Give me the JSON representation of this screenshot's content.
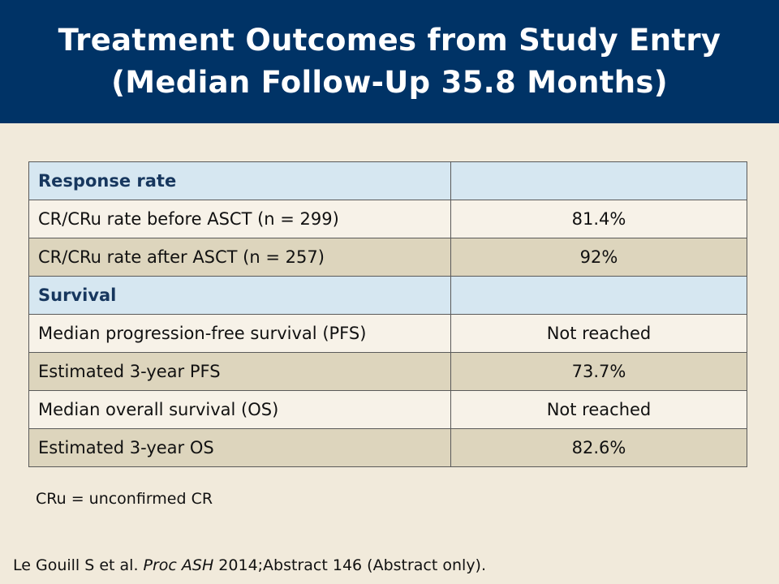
{
  "header": {
    "title_line1": "Treatment Outcomes from Study Entry",
    "title_line2": "(Median Follow-Up 35.8 Months)"
  },
  "table": {
    "rows": [
      {
        "type": "section",
        "label": "Response rate",
        "value": ""
      },
      {
        "type": "light",
        "label": "CR/CRu rate before ASCT (n = 299)",
        "value": "81.4%"
      },
      {
        "type": "dark",
        "label": "CR/CRu rate after ASCT (n = 257)",
        "value": "92%"
      },
      {
        "type": "section",
        "label": "Survival",
        "value": ""
      },
      {
        "type": "light",
        "label": "Median progression-free survival (PFS)",
        "value": "Not reached"
      },
      {
        "type": "dark",
        "label": "Estimated 3-year PFS",
        "value": "73.7%"
      },
      {
        "type": "light",
        "label": "Median overall survival (OS)",
        "value": "Not reached"
      },
      {
        "type": "dark",
        "label": "Estimated 3-year OS",
        "value": "82.6%"
      }
    ]
  },
  "footnote": "CRu = unconfirmed CR",
  "citation": {
    "authors": "Le Gouill S et al. ",
    "journal": "Proc ASH",
    "rest": " 2014;Abstract 146 (Abstract only)."
  },
  "colors": {
    "header_bg": "#003366",
    "slide_bg": "#f1eadb",
    "section_row": "#d6e7f1",
    "light_row": "#f7f2e8",
    "dark_row": "#ddd5bd",
    "section_text": "#17375e"
  }
}
